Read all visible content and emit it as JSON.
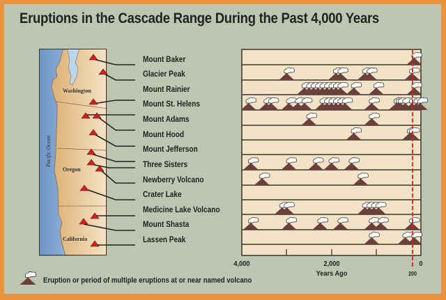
{
  "title": "Eruptions in the Cascade Range During the Past 4,000 Years",
  "map": {
    "ocean_label": "Pacific Ocean",
    "states": [
      "Washington",
      "Oregon",
      "California"
    ],
    "marker_color": "#e02020",
    "ocean_color": "#7ea4cf",
    "land_color": "#e6c489"
  },
  "volcanoes": [
    "Mount Baker",
    "Glacier Peak",
    "Mount Rainier",
    "Mount St. Helens",
    "Mount Adams",
    "Mount Hood",
    "Mount Jefferson",
    "Three Sisters",
    "Newberry Volcano",
    "Crater Lake",
    "Medicine Lake Volcano",
    "Mount Shasta",
    "Lassen Peak"
  ],
  "axis": {
    "ticks": [
      "4,000",
      "2,000",
      "0"
    ],
    "xlabel": "Years Ago",
    "marker_value": "200"
  },
  "legend": {
    "text": "Eruption or period of multiple eruptions at or near named volcano"
  },
  "colors": {
    "border": "#e8933f",
    "background": "#bdc6b1",
    "chart_bg": "#f3e3c6",
    "volcano": "#6b3f3a",
    "marker_line": "#e02020"
  },
  "chart_data": {
    "type": "scatter",
    "title": "Eruptions in the Cascade Range During the Past 4,000 Years",
    "xlabel": "Years Ago",
    "ylabel": "",
    "xlim": [
      4000,
      0
    ],
    "x_ticks": [
      4000,
      3000,
      2000,
      1000,
      0
    ],
    "x_tick_labels": [
      "4,000",
      "2,000",
      "0"
    ],
    "reference_line": {
      "x": 200,
      "label": "200",
      "style": "dashed red"
    },
    "categories": [
      "Mount Baker",
      "Glacier Peak",
      "Mount Rainier",
      "Mount St. Helens",
      "Mount Adams",
      "Mount Hood",
      "Mount Jefferson",
      "Three Sisters",
      "Newberry Volcano",
      "Crater Lake",
      "Medicine Lake Volcano",
      "Mount Shasta",
      "Lassen Peak"
    ],
    "series": [
      {
        "name": "Mount Baker",
        "values": [
          150
        ]
      },
      {
        "name": "Glacier Peak",
        "values": [
          3000,
          1900,
          1800,
          1250,
          1150,
          200
        ]
      },
      {
        "name": "Mount Rainier",
        "values": [
          2600,
          2500,
          2400,
          2300,
          2200,
          2100,
          2000,
          1900,
          1800,
          1500,
          1000,
          150
        ]
      },
      {
        "name": "Mount St. Helens",
        "values": [
          3850,
          3450,
          3350,
          2950,
          2750,
          2600,
          2200,
          2100,
          2000,
          1900,
          1800,
          1700,
          1100,
          550,
          500,
          450,
          350,
          200,
          100,
          20
        ]
      },
      {
        "name": "Mount Adams",
        "values": [
          2500,
          1100
        ]
      },
      {
        "name": "Mount Hood",
        "values": [
          1500,
          250,
          200
        ]
      },
      {
        "name": "Mount Jefferson",
        "values": []
      },
      {
        "name": "Three Sisters",
        "values": [
          3800,
          2950,
          2350,
          2000,
          1550
        ]
      },
      {
        "name": "Newberry Volcano",
        "values": [
          3550,
          1350
        ]
      },
      {
        "name": "Crater Lake",
        "values": []
      },
      {
        "name": "Medicine Lake Volcano",
        "values": [
          3100,
          3000,
          1250,
          1150,
          1050,
          950
        ]
      },
      {
        "name": "Mount Shasta",
        "values": [
          3800,
          2950,
          2250,
          1800,
          1100,
          900,
          200
        ]
      },
      {
        "name": "Lassen Peak",
        "values": [
          1100,
          350,
          150
        ]
      }
    ],
    "legend": [
      "Eruption or period of multiple eruptions at or near named volcano"
    ],
    "grid": false
  }
}
